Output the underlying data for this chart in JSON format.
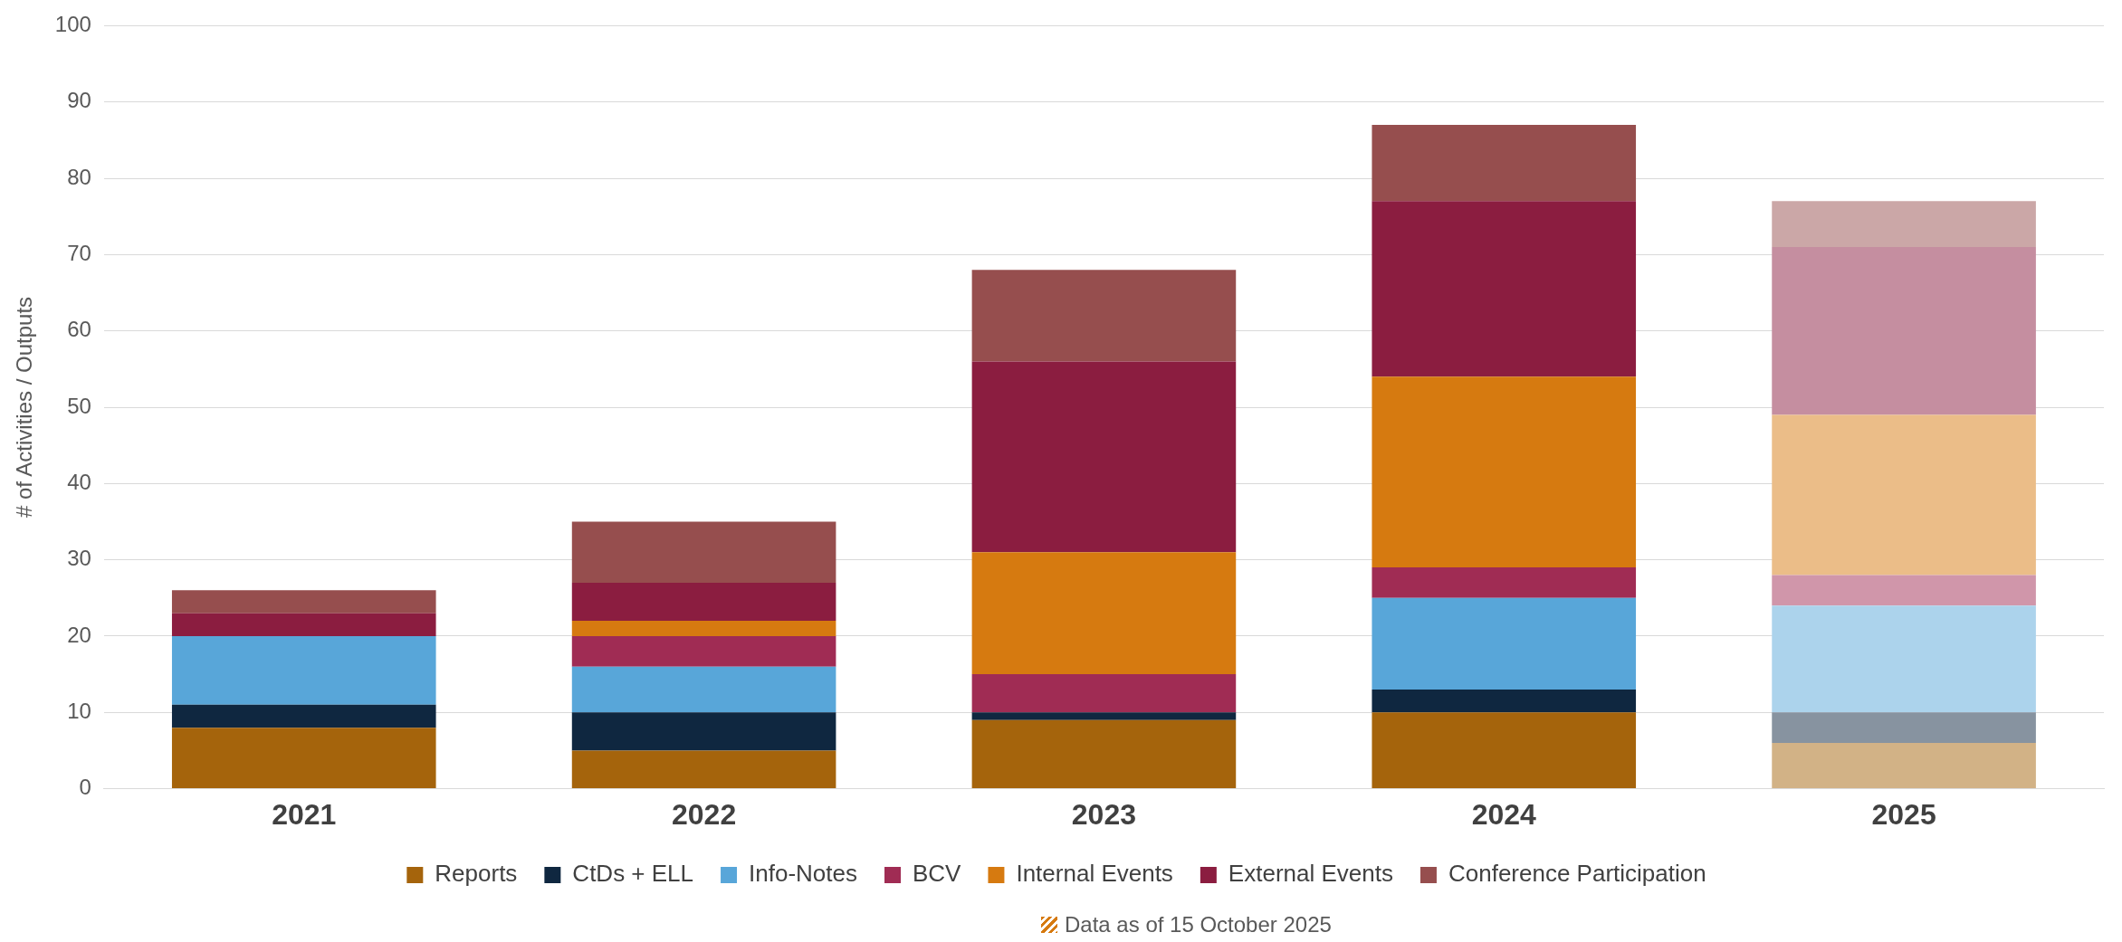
{
  "chart_data": {
    "type": "bar",
    "stacked": true,
    "ylabel": "# of Activities / Outputs",
    "categories": [
      "2021",
      "2022",
      "2023",
      "2024",
      "2025"
    ],
    "series": [
      {
        "name": "Reports",
        "color": "#a5640c",
        "colors": [
          "#a5640c",
          "#a5640c",
          "#a5640c",
          "#a5640c",
          "#d2b286"
        ],
        "values": [
          8,
          5,
          9,
          10,
          6
        ]
      },
      {
        "name": "CtDs + ELL",
        "color": "#0f2740",
        "colors": [
          "#0f2740",
          "#0f2740",
          "#0f2740",
          "#0f2740",
          "#8793a0"
        ],
        "values": [
          3,
          5,
          1,
          3,
          4
        ]
      },
      {
        "name": "Info-Notes",
        "color": "#58a6d9",
        "colors": [
          "#58a6d9",
          "#58a6d9",
          "#58a6d9",
          "#58a6d9",
          "#acd3ec"
        ],
        "values": [
          9,
          6,
          0,
          12,
          14
        ]
      },
      {
        "name": "BCV",
        "color": "#a02c54",
        "colors": [
          "#a02c54",
          "#a02c54",
          "#a02c54",
          "#a02c54",
          "#d096aa"
        ],
        "values": [
          0,
          4,
          5,
          4,
          4
        ]
      },
      {
        "name": "Internal Events",
        "color": "#d67a10",
        "colors": [
          "#d67a10",
          "#d67a10",
          "#d67a10",
          "#d67a10",
          "#ebbd88"
        ],
        "values": [
          0,
          2,
          16,
          25,
          21
        ]
      },
      {
        "name": "External Events",
        "color": "#8b1d40",
        "colors": [
          "#8b1d40",
          "#8b1d40",
          "#8b1d40",
          "#8b1d40",
          "#c58ea0"
        ],
        "values": [
          3,
          5,
          25,
          23,
          22
        ]
      },
      {
        "name": "Conference Participation",
        "color": "#964e4e",
        "colors": [
          "#964e4e",
          "#964e4e",
          "#964e4e",
          "#964e4e",
          "#cba7a7"
        ],
        "values": [
          3,
          8,
          12,
          10,
          6
        ]
      }
    ],
    "ylim": [
      0,
      100
    ],
    "yticks": [
      0,
      10,
      20,
      30,
      40,
      50,
      60,
      70,
      80,
      90,
      100
    ],
    "grid": "y",
    "legend": "bottom",
    "annotations": [
      "Data as of 15 October 2025"
    ]
  }
}
